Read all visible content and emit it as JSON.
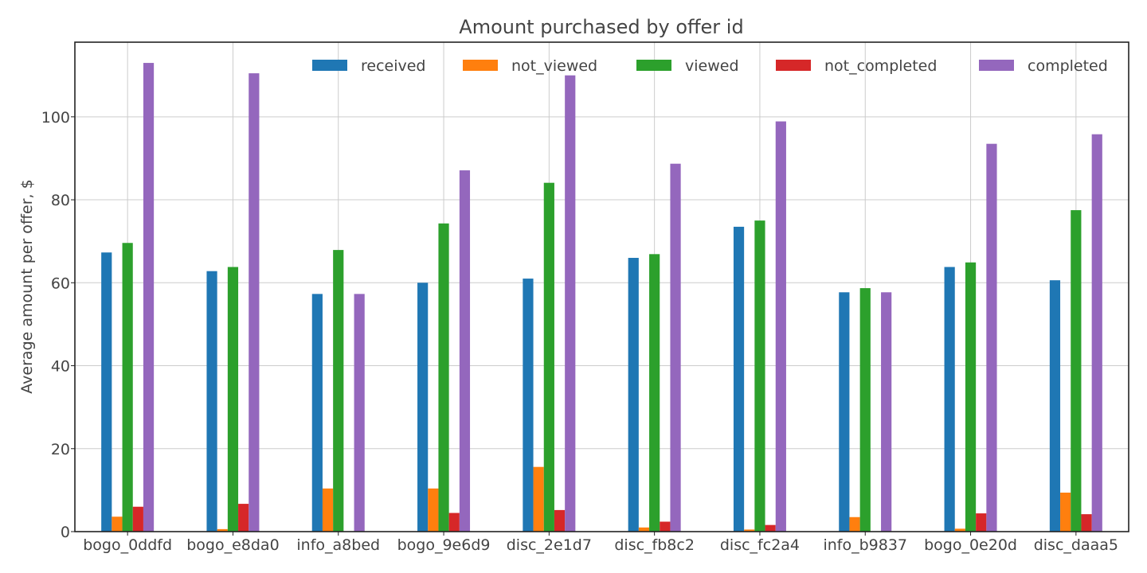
{
  "chart_data": {
    "type": "bar",
    "title": "Amount purchased by offer id",
    "xlabel": "",
    "ylabel": "Average amount per offer, $",
    "ylim": [
      0,
      118
    ],
    "yticks": [
      0,
      20,
      40,
      60,
      80,
      100
    ],
    "grid": true,
    "legend_position": "top-right",
    "categories": [
      "bogo_0ddfd",
      "bogo_e8da0",
      "info_a8bed",
      "bogo_9e6d9",
      "disc_2e1d7",
      "disc_fb8c2",
      "disc_fc2a4",
      "info_b9837",
      "bogo_0e20d",
      "disc_daaa5"
    ],
    "series": [
      {
        "name": "received",
        "color": "#1f77b4",
        "values": [
          67.3,
          62.8,
          57.3,
          60.0,
          61.0,
          66.0,
          73.5,
          57.7,
          63.8,
          60.6
        ]
      },
      {
        "name": "not_viewed",
        "color": "#ff7f0e",
        "values": [
          3.6,
          0.6,
          10.4,
          10.4,
          15.6,
          1.0,
          0.5,
          3.5,
          0.7,
          9.4
        ]
      },
      {
        "name": "viewed",
        "color": "#2ca02c",
        "values": [
          69.6,
          63.8,
          67.9,
          74.3,
          84.1,
          66.9,
          75.0,
          58.7,
          64.9,
          77.5
        ]
      },
      {
        "name": "not_completed",
        "color": "#d62728",
        "values": [
          6.0,
          6.7,
          0,
          4.5,
          5.2,
          2.4,
          1.6,
          0,
          4.4,
          4.2
        ]
      },
      {
        "name": "completed",
        "color": "#9467bd",
        "values": [
          113.0,
          110.5,
          57.3,
          87.1,
          110.0,
          88.7,
          98.9,
          57.7,
          93.5,
          95.8
        ]
      }
    ]
  }
}
